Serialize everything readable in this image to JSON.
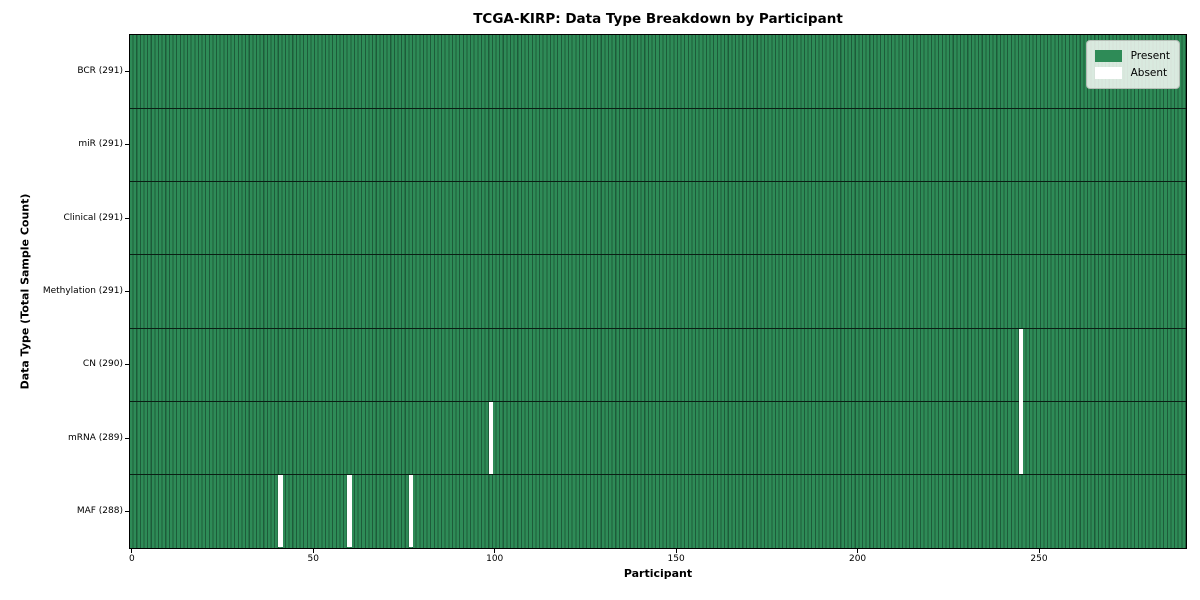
{
  "chart_data": {
    "type": "heatmap",
    "title": "TCGA-KIRP: Data Type Breakdown by Participant",
    "xlabel": "Participant",
    "ylabel": "Data Type (Total Sample Count)",
    "n_participants": 291,
    "x_ticks": [
      0,
      50,
      100,
      150,
      200,
      250
    ],
    "x_range": [
      0,
      291
    ],
    "grid": false,
    "rows": [
      {
        "label": "BCR (291)",
        "data_type": "BCR",
        "total_samples": 291,
        "absent_participants": []
      },
      {
        "label": "miR (291)",
        "data_type": "miR",
        "total_samples": 291,
        "absent_participants": []
      },
      {
        "label": "Clinical (291)",
        "data_type": "Clinical",
        "total_samples": 291,
        "absent_participants": []
      },
      {
        "label": "Methylation (291)",
        "data_type": "Methylation",
        "total_samples": 291,
        "absent_participants": []
      },
      {
        "label": "CN (290)",
        "data_type": "CN",
        "total_samples": 290,
        "absent_participants": [
          245
        ]
      },
      {
        "label": "mRNA (289)",
        "data_type": "mRNA",
        "total_samples": 289,
        "absent_participants": [
          99,
          245
        ]
      },
      {
        "label": "MAF (288)",
        "data_type": "MAF",
        "total_samples": 288,
        "absent_participants": [
          41,
          60,
          77
        ]
      }
    ],
    "legend": {
      "position": "upper right",
      "entries": [
        {
          "label": "Present",
          "color": "#2e8b57"
        },
        {
          "label": "Absent",
          "color": "#ffffff"
        }
      ]
    },
    "colors": {
      "present_fill": "#2e8b57",
      "present_edge": "#1d5c3a",
      "absent_fill": "#ffffff",
      "row_divider": "#0a1f14",
      "plot_border": "#000000",
      "background": "#ffffff"
    }
  }
}
